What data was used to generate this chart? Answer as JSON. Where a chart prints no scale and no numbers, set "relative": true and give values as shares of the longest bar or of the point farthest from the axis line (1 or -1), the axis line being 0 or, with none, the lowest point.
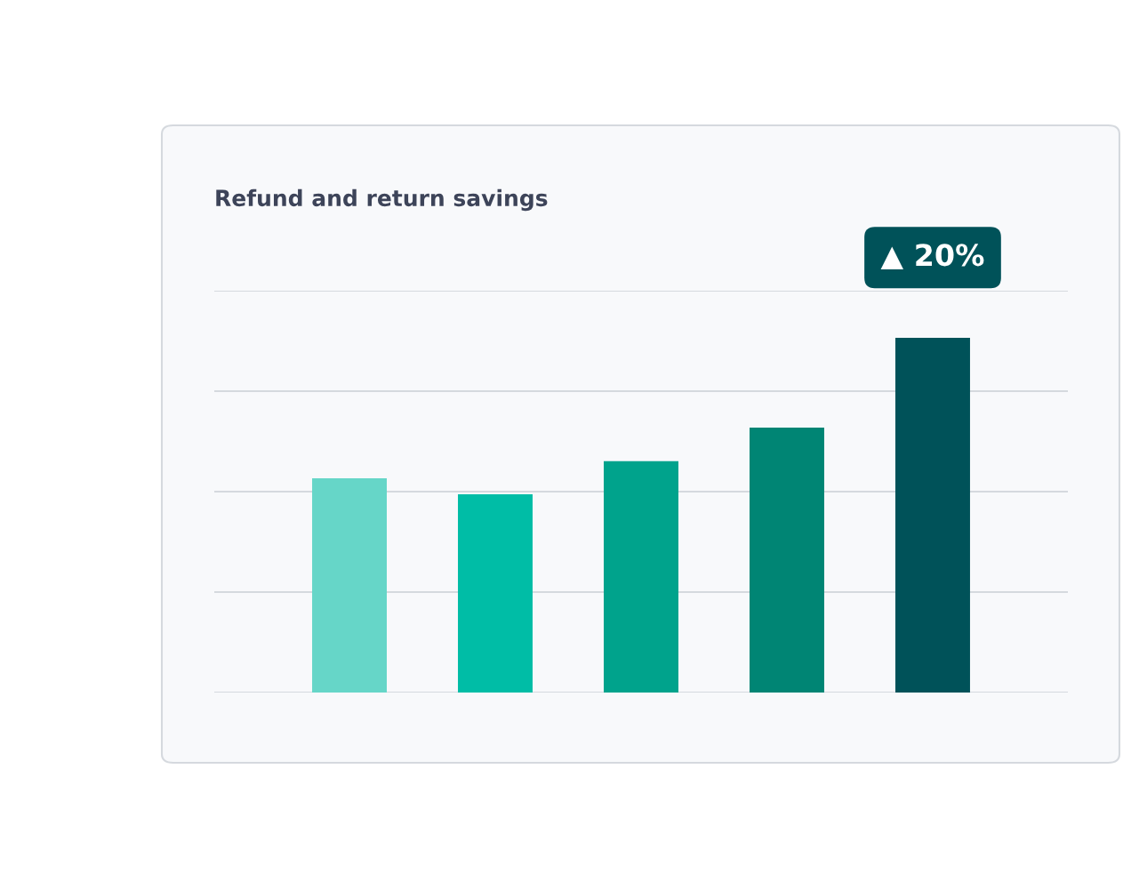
{
  "chart_data": {
    "type": "bar",
    "title": "Refund and return savings",
    "categories": [
      null,
      null,
      null,
      null,
      null
    ],
    "values": [
      0.604,
      0.559,
      0.652,
      0.747,
      1
    ],
    "colors": [
      "#66d6c8",
      "#00bda6",
      "#00a38c",
      "#008574",
      "#005259"
    ],
    "relative": true,
    "grid": "y",
    "annotations": [
      "▲ 20%"
    ]
  }
}
